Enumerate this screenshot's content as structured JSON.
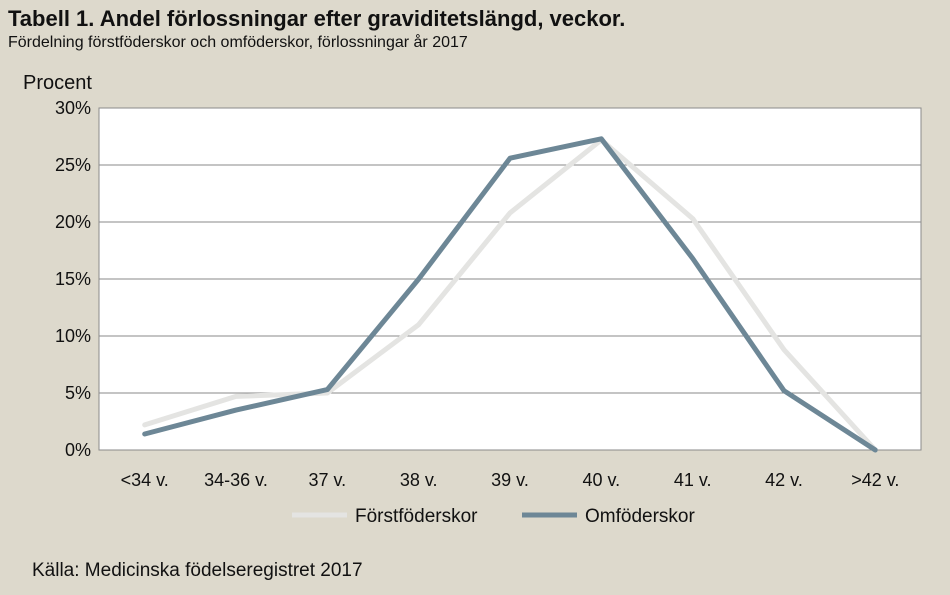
{
  "chart_data": {
    "type": "line",
    "title": "Tabell 1. Andel förlossningar efter graviditetslängd, veckor.",
    "subtitle": "Fördelning förstföderskor och omföderskor, förlossningar år 2017",
    "ylabel": "Procent",
    "xlabel": "",
    "source": "Källa: Medicinska födelseregistret 2017",
    "categories": [
      "<34 v.",
      "34-36 v.",
      "37 v.",
      "38 v.",
      "39 v.",
      "40 v.",
      "41 v.",
      "42 v.",
      ">42 v."
    ],
    "ylim": [
      0,
      30
    ],
    "yticks": [
      0,
      5,
      10,
      15,
      20,
      25,
      30
    ],
    "ytick_labels": [
      "0%",
      "5%",
      "10%",
      "15%",
      "20%",
      "25%",
      "30%"
    ],
    "grid": true,
    "legend_position": "bottom",
    "series": [
      {
        "name": "Förstföderskor",
        "color": "#e4e4e2",
        "values": [
          2.2,
          4.7,
          5.0,
          11.0,
          20.8,
          27.2,
          20.3,
          8.8,
          0.0
        ]
      },
      {
        "name": "Omföderskor",
        "color": "#6d8796",
        "values": [
          1.4,
          3.5,
          5.3,
          15.0,
          25.6,
          27.3,
          16.8,
          5.2,
          0.0
        ]
      }
    ]
  }
}
